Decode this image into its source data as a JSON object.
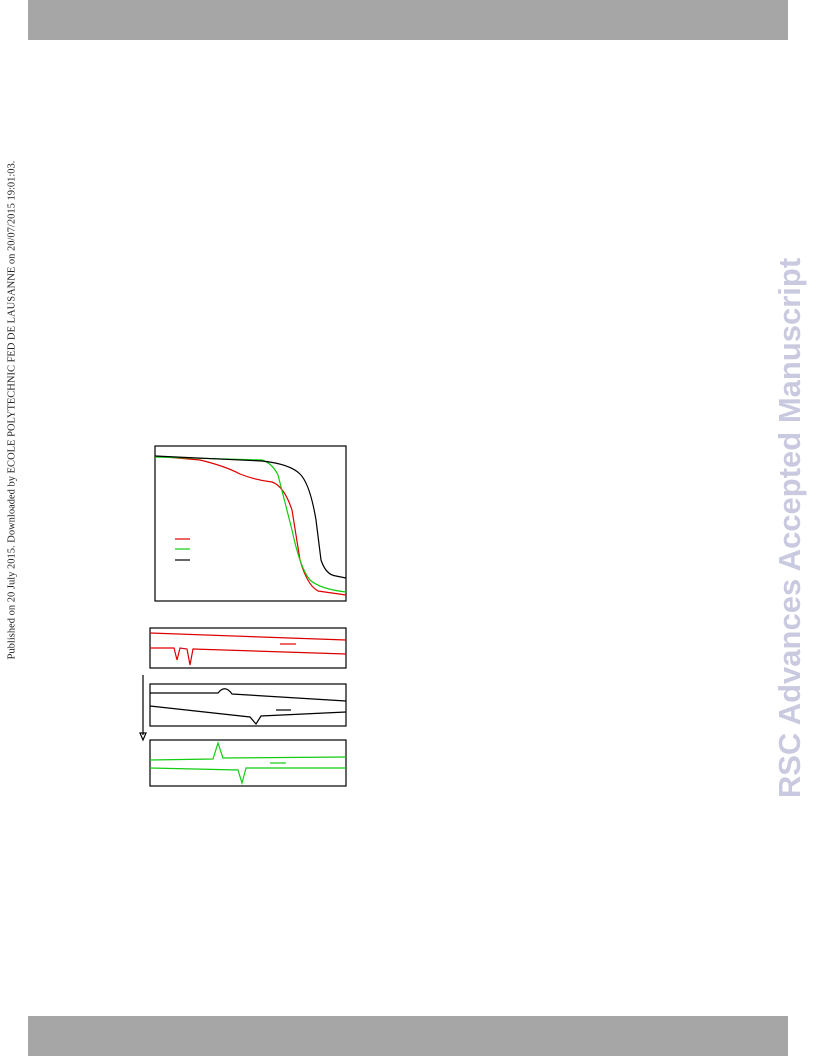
{
  "side_note": "Published on 20 July 2015. Downloaded by ECOLE POLYTECHNIC FED DE LAUSANNE on 20/07/2015 19:01:03.",
  "watermark": "RSC Advances Accepted Manuscript"
}
